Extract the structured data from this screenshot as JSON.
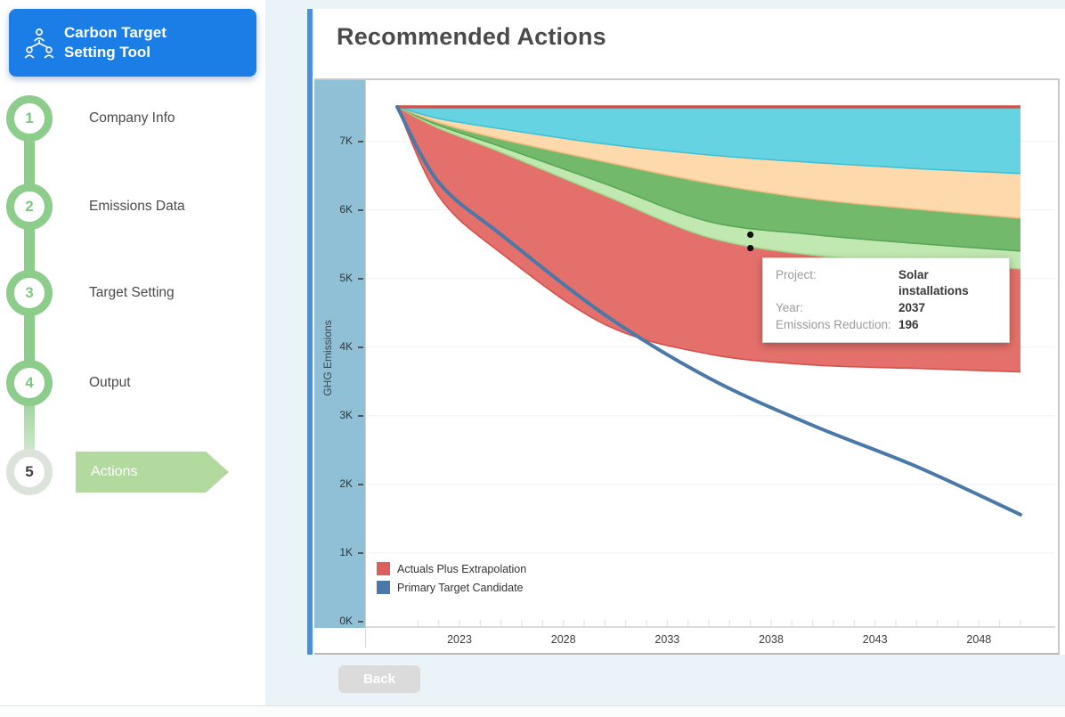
{
  "app": {
    "title_line1": "Carbon Target",
    "title_line2": "Setting Tool"
  },
  "sidebar": {
    "steps": [
      {
        "num": "1",
        "label": "Company Info"
      },
      {
        "num": "2",
        "label": "Emissions Data"
      },
      {
        "num": "3",
        "label": "Target Setting"
      },
      {
        "num": "4",
        "label": "Output"
      },
      {
        "num": "5",
        "label": "Actions"
      }
    ]
  },
  "main": {
    "title": "Recommended Actions",
    "back_label": "Back"
  },
  "tooltip": {
    "project_label": "Project:",
    "project_value": "Solar installations",
    "year_label": "Year:",
    "year_value": "2037",
    "reduction_label": "Emissions Reduction:",
    "reduction_value": "196"
  },
  "colors": {
    "header_blue": "#1b7de6",
    "accent_bar": "#4a90d9",
    "page_bg": "#eaf4f8",
    "step_green": "#8ccd8c",
    "actions_arrow_green": "#b2d99e",
    "axis_band_blue": "#8fc0d5",
    "back_button_gray": "#dbdbdb"
  },
  "chart_data": {
    "type": "area",
    "title": "",
    "xlabel": "",
    "ylabel": "GHG Emissions",
    "x_range": [
      2020,
      2050
    ],
    "ylim": [
      0,
      7890
    ],
    "grid": true,
    "legend_position": "bottom-left-inside",
    "x_tick_years": [
      2023,
      2028,
      2033,
      2038,
      2043,
      2048
    ],
    "y_tick_labels": [
      "0K",
      "1K",
      "2K",
      "3K",
      "4K",
      "5K",
      "6K",
      "7K"
    ],
    "sample_years": [
      2020,
      2022,
      2025,
      2030,
      2035,
      2040,
      2045,
      2050
    ],
    "baseline_top_line": {
      "color": "#d6504c",
      "values": [
        7500,
        7500,
        7500,
        7500,
        7500,
        7500,
        7500,
        7500
      ]
    },
    "bands": [
      {
        "name": "reduction-band-1",
        "fill": "#66d3e3",
        "stroke": "#3ec2d6",
        "lower": [
          7500,
          7330,
          7180,
          6960,
          6800,
          6690,
          6600,
          6530
        ]
      },
      {
        "name": "reduction-band-2",
        "fill": "#fdd9ac",
        "stroke": "#f2bd7e",
        "lower": [
          7500,
          7270,
          7030,
          6700,
          6390,
          6160,
          6010,
          5880
        ]
      },
      {
        "name": "reduction-band-3",
        "fill": "#72b96b",
        "stroke": "#58a657",
        "lower": [
          7500,
          7230,
          6920,
          6380,
          5830,
          5640,
          5510,
          5400
        ]
      },
      {
        "name": "reduction-band-4-solar-installations",
        "fill": "#c2e8b1",
        "stroke": "#a0da8b",
        "lower": [
          7500,
          7190,
          6840,
          6210,
          5600,
          5340,
          5230,
          5140
        ]
      },
      {
        "name": "actuals-plus-extrapolation",
        "fill": "#e4706b",
        "stroke": "#d6504c",
        "lower": [
          7500,
          6200,
          5370,
          4330,
          3900,
          3740,
          3690,
          3640
        ]
      }
    ],
    "target_line": {
      "name": "Primary Target Candidate",
      "color": "#4a78a9",
      "values": [
        7500,
        6400,
        5640,
        4470,
        3550,
        2860,
        2260,
        1560
      ]
    },
    "hover_markers": [
      {
        "year": 2037,
        "value": 5638
      },
      {
        "year": 2037,
        "value": 5442
      }
    ],
    "legend": [
      {
        "label": "Actuals Plus Extrapolation",
        "color": "#dd5f5d"
      },
      {
        "label": "Primary Target Candidate",
        "color": "#4a78a9"
      }
    ]
  }
}
